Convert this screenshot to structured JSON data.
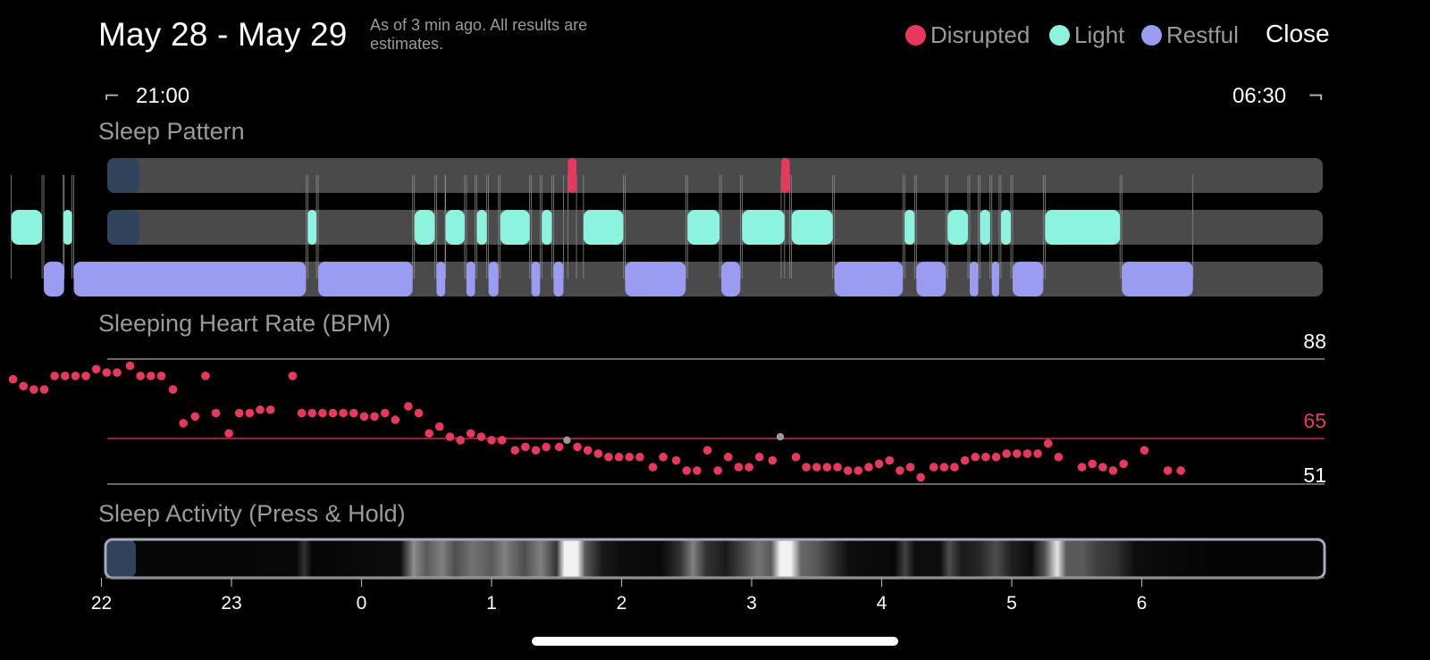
{
  "header": {
    "title": "May 28 - May 29",
    "subtitle": "As of 3 min ago. All results are estimates.",
    "close_label": "Close",
    "legend": [
      {
        "label": "Disrupted",
        "color": "#e9385d"
      },
      {
        "label": "Light",
        "color": "#8cf3df"
      },
      {
        "label": "Restful",
        "color": "#9a9cf2"
      }
    ]
  },
  "time_range": {
    "start": "21:00",
    "end": "06:30"
  },
  "sleep_pattern": {
    "label": "Sleep Pattern",
    "disrupted": [
      [
        1.58,
        1.66
      ],
      [
        3.22,
        3.3
      ]
    ],
    "light": [
      [
        -2.7,
        -2.45
      ],
      [
        -2.3,
        -2.22
      ],
      [
        -0.42,
        -0.34
      ],
      [
        0.4,
        0.57
      ],
      [
        0.64,
        0.8
      ],
      [
        0.88,
        0.97
      ],
      [
        1.06,
        1.3
      ],
      [
        1.38,
        1.47
      ],
      [
        1.7,
        2.02
      ],
      [
        2.5,
        2.76
      ],
      [
        2.92,
        3.26
      ],
      [
        3.3,
        3.63
      ],
      [
        4.17,
        4.26
      ],
      [
        4.5,
        4.67
      ],
      [
        4.75,
        4.84
      ],
      [
        4.91,
        5.0
      ],
      [
        5.25,
        5.84
      ]
    ],
    "restful": [
      [
        -2.45,
        -2.28
      ],
      [
        -2.22,
        -0.42
      ],
      [
        -0.34,
        0.4
      ],
      [
        0.57,
        0.65
      ],
      [
        0.8,
        0.88
      ],
      [
        0.97,
        1.06
      ],
      [
        1.3,
        1.38
      ],
      [
        1.47,
        1.56
      ],
      [
        2.02,
        2.5
      ],
      [
        2.76,
        2.92
      ],
      [
        3.63,
        4.17
      ],
      [
        4.26,
        4.5
      ],
      [
        4.67,
        4.75
      ],
      [
        4.84,
        4.91
      ],
      [
        5.0,
        5.25
      ],
      [
        5.84,
        6.4
      ]
    ]
  },
  "heart_rate": {
    "label": "Sleeping Heart Rate (BPM)",
    "max": 88,
    "avg": 65,
    "min": 51
  },
  "sleep_activity": {
    "label": "Sleep Activity (Press & Hold)"
  },
  "axis": {
    "ticks": [
      "22",
      "23",
      "0",
      "1",
      "2",
      "3",
      "4",
      "5",
      "6"
    ]
  },
  "chart_data": {
    "type": "scatter",
    "title": "Sleeping Heart Rate (BPM)",
    "x_unit": "hours relative to midnight",
    "xlim": [
      -3,
      6.5
    ],
    "ylim": [
      51,
      88
    ],
    "reference_lines": [
      88,
      65,
      51
    ],
    "series": [
      {
        "values": [
          [
            -2.68,
            82
          ],
          [
            -2.6,
            80
          ],
          [
            -2.52,
            79
          ],
          [
            -2.44,
            79
          ],
          [
            -2.36,
            83
          ],
          [
            -2.28,
            83
          ],
          [
            -2.2,
            83
          ],
          [
            -2.12,
            83
          ],
          [
            -2.04,
            85
          ],
          [
            -1.96,
            84
          ],
          [
            -1.88,
            84
          ],
          [
            -1.78,
            86
          ],
          [
            -1.7,
            83
          ],
          [
            -1.62,
            83
          ],
          [
            -1.54,
            83
          ],
          [
            -1.45,
            79
          ],
          [
            -1.37,
            69
          ],
          [
            -1.28,
            71
          ],
          [
            -1.2,
            83
          ],
          [
            -1.12,
            72
          ],
          [
            -1.02,
            66
          ],
          [
            -0.94,
            72
          ],
          [
            -0.86,
            72
          ],
          [
            -0.78,
            73
          ],
          [
            -0.7,
            73
          ],
          [
            -0.53,
            83
          ],
          [
            -0.46,
            72
          ],
          [
            -0.38,
            72
          ],
          [
            -0.3,
            72
          ],
          [
            -0.22,
            72
          ],
          [
            -0.14,
            72
          ],
          [
            -0.06,
            72
          ],
          [
            0.02,
            71
          ],
          [
            0.1,
            71
          ],
          [
            0.18,
            72
          ],
          [
            0.26,
            70
          ],
          [
            0.36,
            74
          ],
          [
            0.44,
            72
          ],
          [
            0.52,
            66
          ],
          [
            0.6,
            68
          ],
          [
            0.68,
            65
          ],
          [
            0.76,
            64
          ],
          [
            0.84,
            66
          ],
          [
            0.92,
            65
          ],
          [
            1.0,
            64
          ],
          [
            1.08,
            64
          ],
          [
            1.18,
            61
          ],
          [
            1.26,
            62
          ],
          [
            1.34,
            61
          ],
          [
            1.42,
            62
          ],
          [
            1.52,
            62
          ],
          [
            1.66,
            62
          ],
          [
            1.74,
            61
          ],
          [
            1.82,
            60
          ],
          [
            1.9,
            59
          ],
          [
            1.98,
            59
          ],
          [
            2.06,
            59
          ],
          [
            2.14,
            59
          ],
          [
            2.24,
            56
          ],
          [
            2.32,
            59
          ],
          [
            2.42,
            58
          ],
          [
            2.5,
            55
          ],
          [
            2.58,
            55
          ],
          [
            2.66,
            61
          ],
          [
            2.74,
            55
          ],
          [
            2.82,
            59
          ],
          [
            2.9,
            56
          ],
          [
            2.98,
            56
          ],
          [
            3.06,
            59
          ],
          [
            3.16,
            58
          ],
          [
            3.34,
            59
          ],
          [
            3.42,
            56
          ],
          [
            3.5,
            56
          ],
          [
            3.58,
            56
          ],
          [
            3.66,
            56
          ],
          [
            3.74,
            55
          ],
          [
            3.82,
            55
          ],
          [
            3.9,
            56
          ],
          [
            3.98,
            57
          ],
          [
            4.06,
            58
          ],
          [
            4.14,
            55
          ],
          [
            4.22,
            56
          ],
          [
            4.3,
            53
          ],
          [
            4.4,
            56
          ],
          [
            4.48,
            56
          ],
          [
            4.56,
            56
          ],
          [
            4.64,
            58
          ],
          [
            4.72,
            59
          ],
          [
            4.8,
            59
          ],
          [
            4.88,
            59
          ],
          [
            4.96,
            60
          ],
          [
            5.04,
            60
          ],
          [
            5.12,
            60
          ],
          [
            5.2,
            60
          ],
          [
            5.28,
            63
          ],
          [
            5.36,
            59
          ],
          [
            5.54,
            56
          ],
          [
            5.62,
            57
          ],
          [
            5.7,
            56
          ],
          [
            5.78,
            55
          ],
          [
            5.86,
            57
          ],
          [
            6.02,
            61
          ],
          [
            6.2,
            55
          ],
          [
            6.3,
            55
          ]
        ]
      },
      {
        "values": [
          [
            1.58,
            64
          ],
          [
            3.22,
            65
          ]
        ]
      }
    ]
  }
}
